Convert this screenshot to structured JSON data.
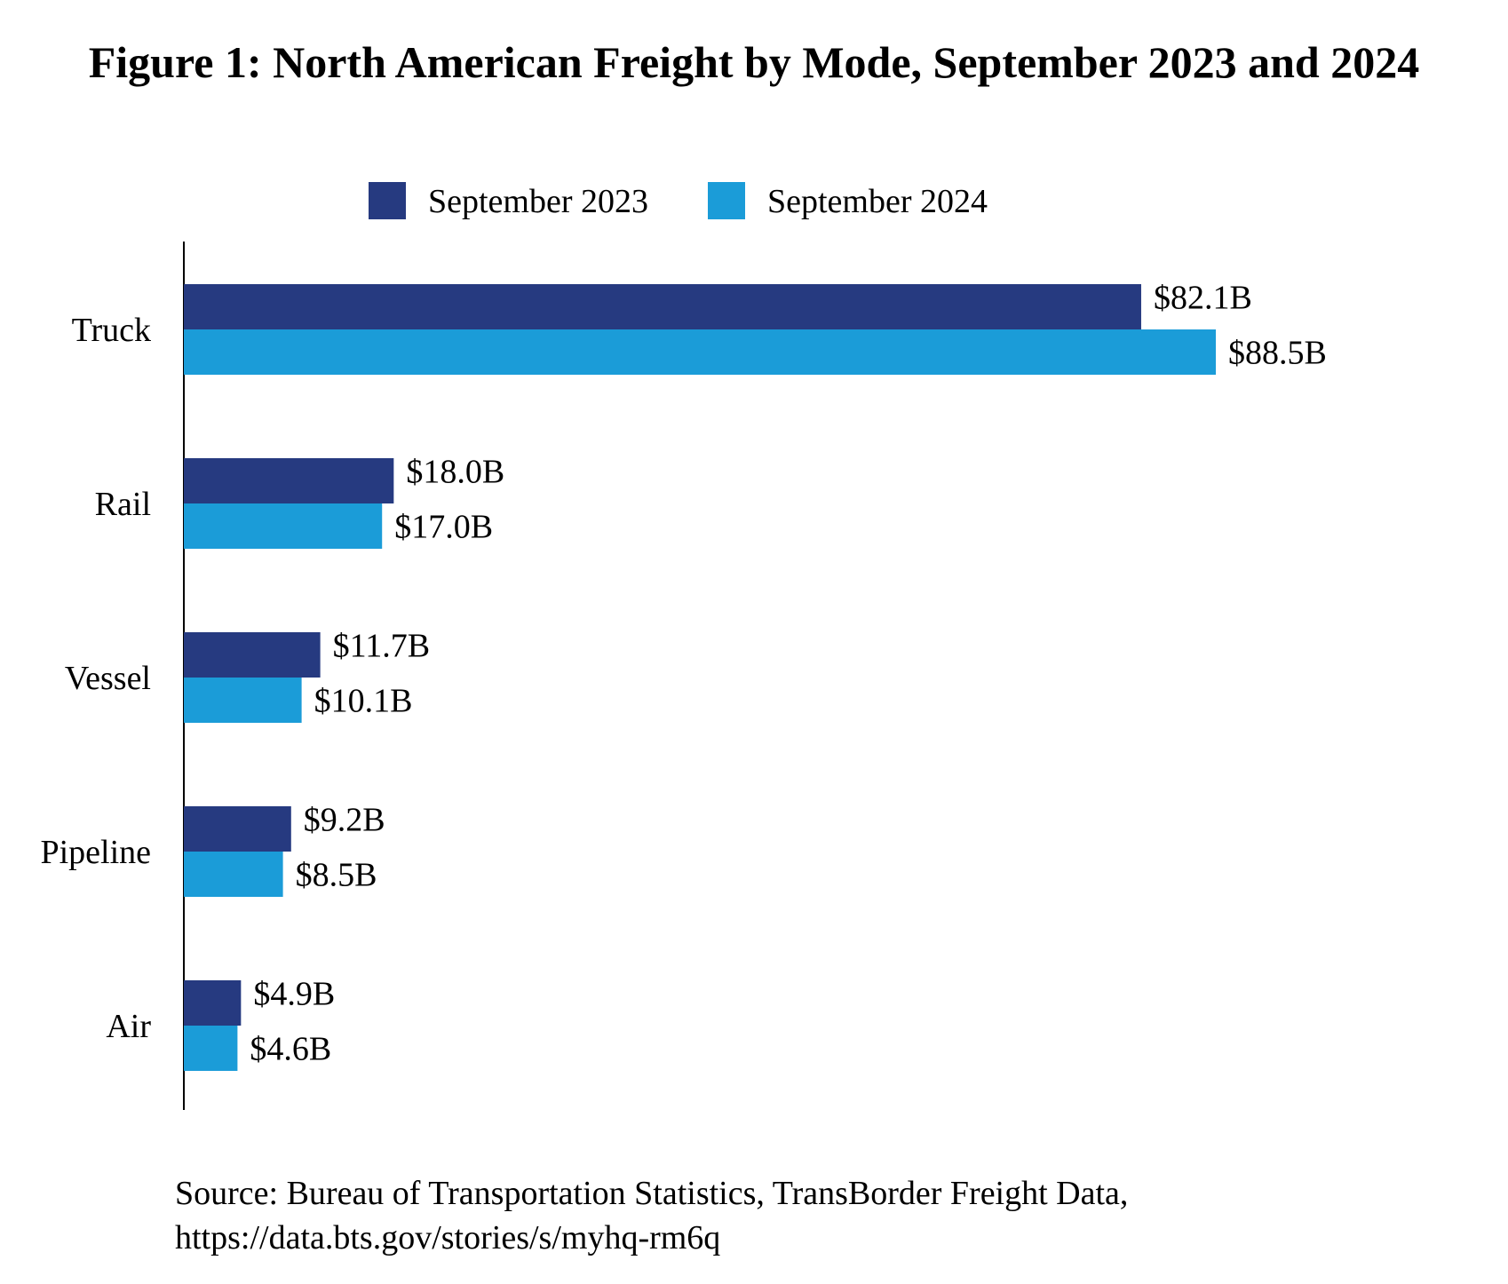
{
  "chart_data": {
    "type": "bar",
    "orientation": "horizontal",
    "title": "Figure 1: North American Freight by Mode, September 2023 and 2024",
    "categories": [
      "Truck",
      "Rail",
      "Vessel",
      "Pipeline",
      "Air"
    ],
    "series": [
      {
        "name": "September 2023",
        "color": "#263a80",
        "values": [
          82.1,
          18.0,
          11.7,
          9.2,
          4.9
        ],
        "labels": [
          "$82.1B",
          "$18.0B",
          "$11.7B",
          "$9.2B",
          "$4.9B"
        ]
      },
      {
        "name": "September 2024",
        "color": "#1b9cd8",
        "values": [
          88.5,
          17.0,
          10.1,
          8.5,
          4.6
        ],
        "labels": [
          "$88.5B",
          "$17.0B",
          "$10.1B",
          "$8.5B",
          "$4.6B"
        ]
      }
    ],
    "xlabel": "",
    "ylabel": "",
    "unit": "billion USD",
    "xlim": [
      0,
      100
    ],
    "grid": false,
    "legend": "top-center"
  },
  "source": {
    "line1": "Source: Bureau of Transportation Statistics, TransBorder Freight Data,",
    "line2": "https://data.bts.gov/stories/s/myhq-rm6q"
  }
}
